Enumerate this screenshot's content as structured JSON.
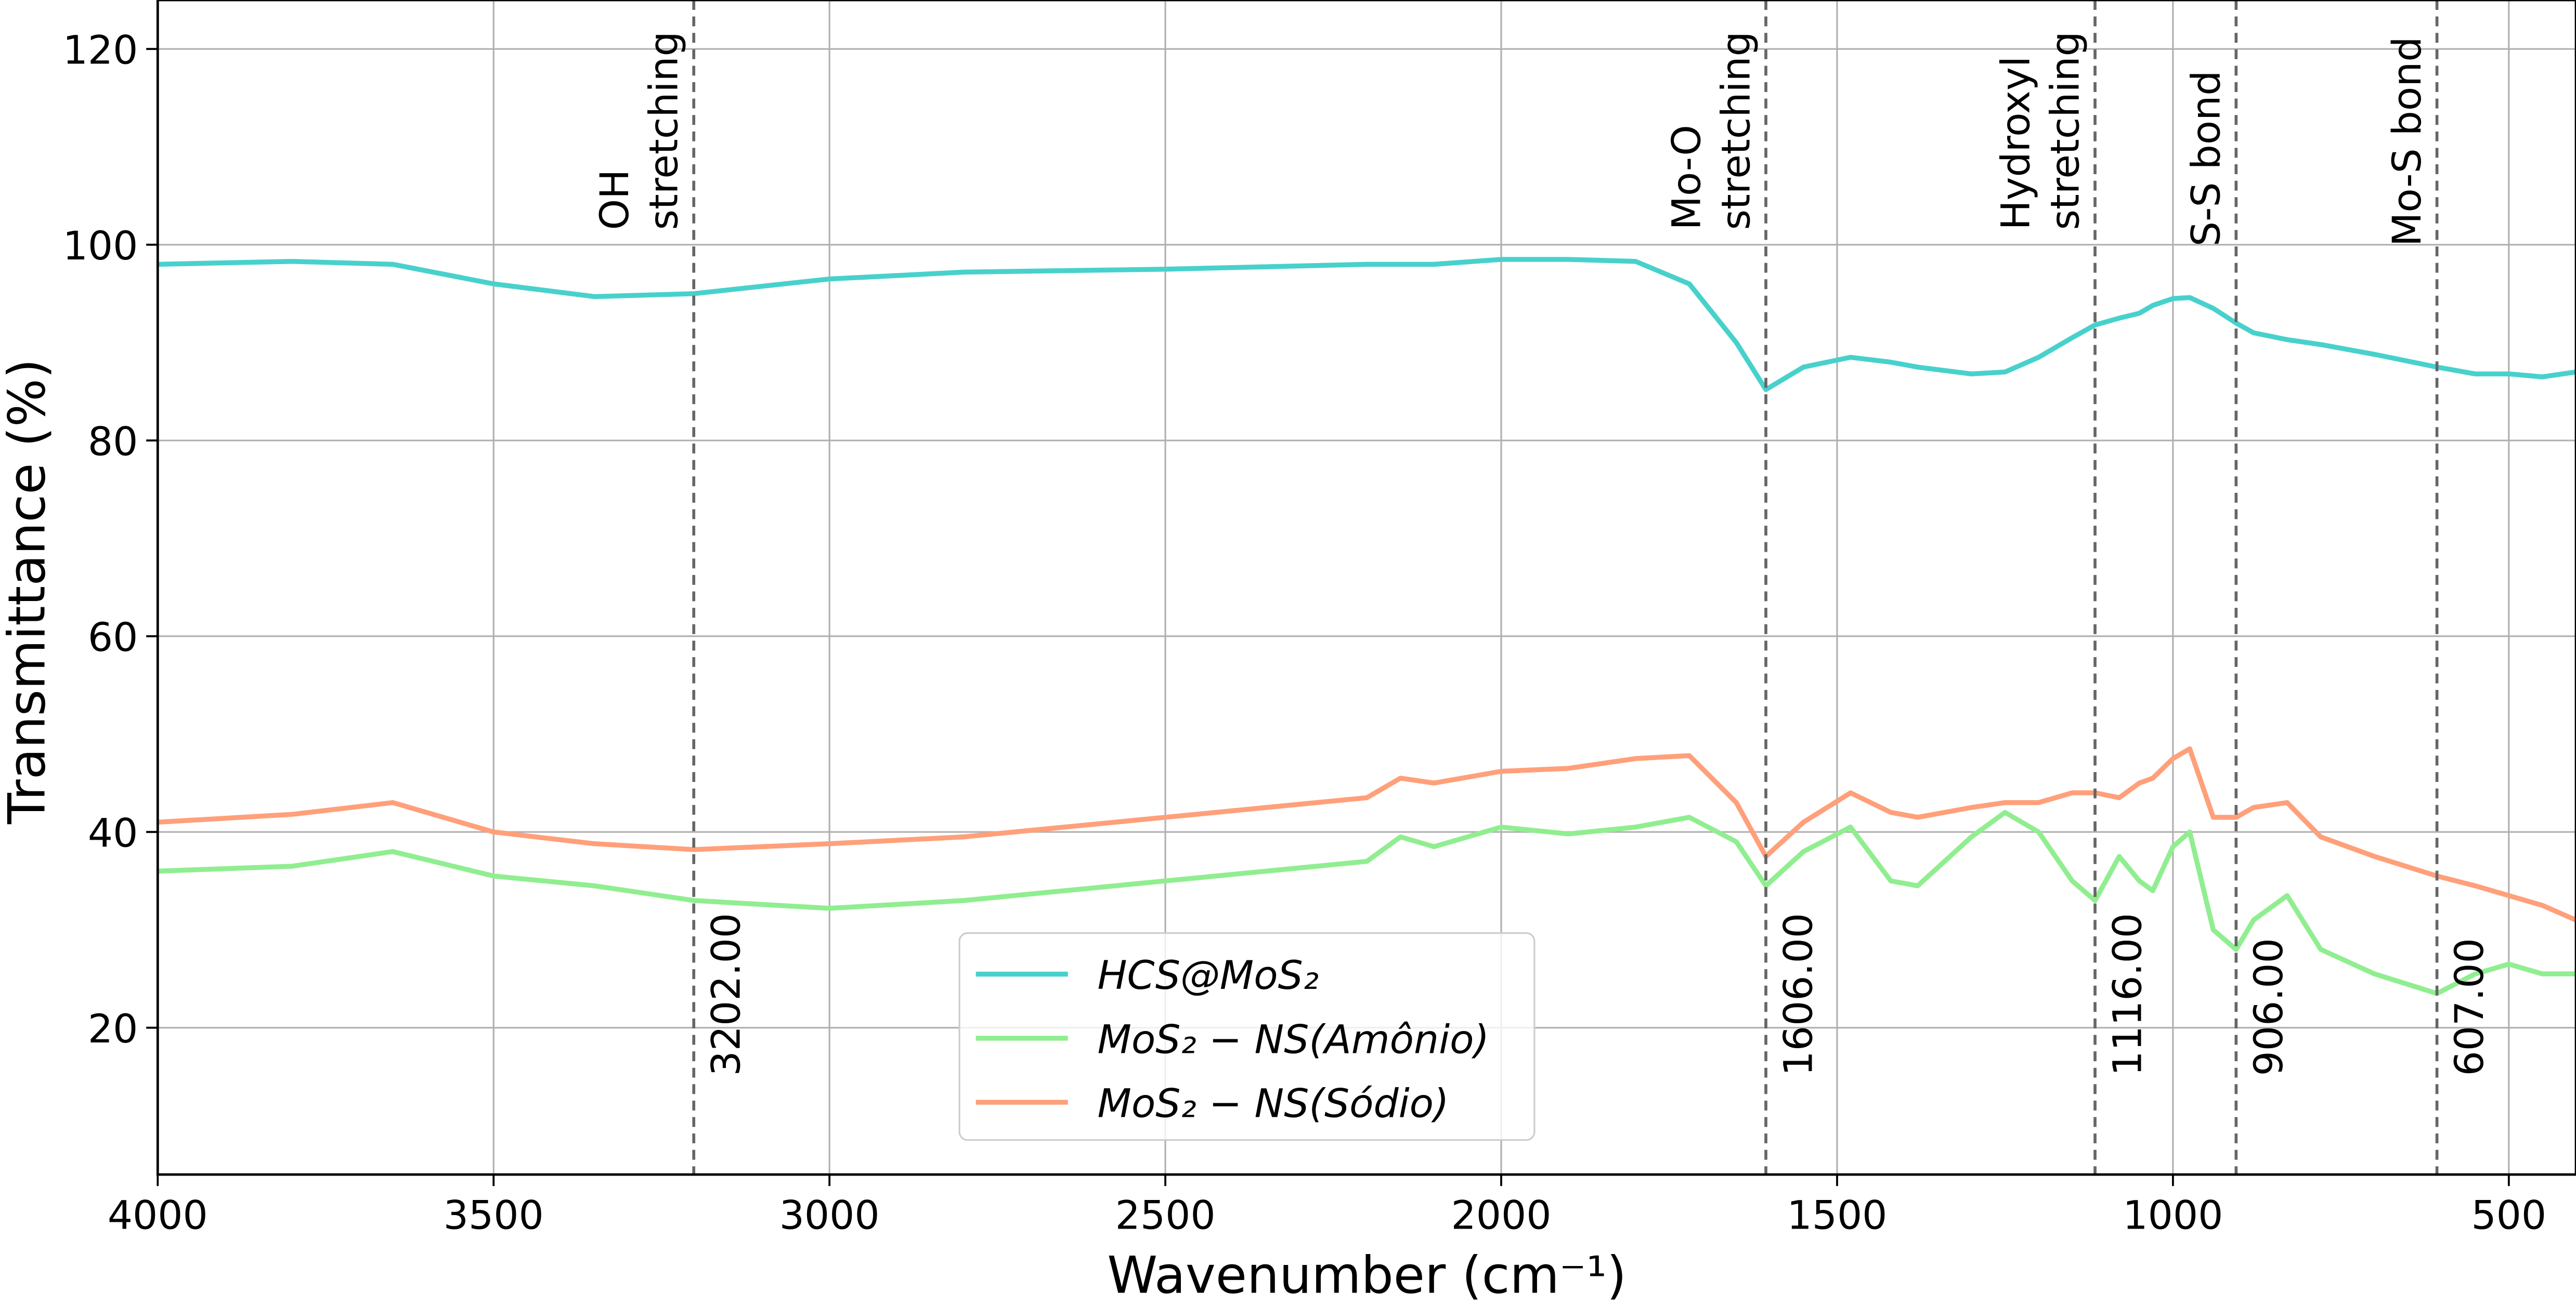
{
  "chart_data": {
    "type": "line",
    "xlabel": "Wavenumber (cm⁻¹)",
    "ylabel": "Transmittance (%)",
    "x": [
      4000,
      3800,
      3650,
      3500,
      3350,
      3202,
      3000,
      2800,
      2500,
      2200,
      2150,
      2100,
      2000,
      1900,
      1800,
      1720,
      1650,
      1606,
      1550,
      1480,
      1420,
      1380,
      1300,
      1250,
      1200,
      1150,
      1116,
      1080,
      1050,
      1030,
      1000,
      975,
      940,
      906,
      880,
      830,
      780,
      700,
      607,
      550,
      500,
      450,
      400
    ],
    "series": [
      {
        "name": "HCS@MoS₂",
        "color": "#48d1cc",
        "values": [
          98,
          98.3,
          98,
          96,
          94.7,
          95,
          96.5,
          97.2,
          97.5,
          98,
          98,
          98,
          98.5,
          98.5,
          98.3,
          96,
          90,
          85.2,
          87.5,
          88.5,
          88,
          87.5,
          86.8,
          87,
          88.5,
          90.5,
          91.8,
          92.5,
          93,
          93.8,
          94.5,
          94.6,
          93.5,
          92,
          91,
          90.3,
          89.8,
          88.8,
          87.5,
          86.8,
          86.8,
          86.5,
          87
        ]
      },
      {
        "name": "MoS₂ − NS(Amônio)",
        "color": "#90ee90",
        "values": [
          36,
          36.5,
          38,
          35.5,
          34.5,
          33,
          32.2,
          33,
          35,
          37,
          39.5,
          38.5,
          40.5,
          39.8,
          40.5,
          41.5,
          39,
          34.5,
          38,
          40.5,
          35,
          34.5,
          39.5,
          42,
          40,
          35,
          33,
          37.5,
          35,
          34,
          38.5,
          40,
          30,
          28,
          31,
          33.5,
          28,
          25.5,
          23.5,
          25.5,
          26.5,
          25.5,
          25.5
        ]
      },
      {
        "name": "MoS₂ − NS(Sódio)",
        "color": "#ffa07a",
        "values": [
          41,
          41.8,
          43,
          40,
          38.8,
          38.2,
          38.8,
          39.5,
          41.5,
          43.5,
          45.5,
          45,
          46.2,
          46.5,
          47.5,
          47.8,
          43,
          37.5,
          41,
          44,
          42,
          41.5,
          42.5,
          43,
          43,
          44,
          44,
          43.5,
          45,
          45.5,
          47.5,
          48.5,
          41.5,
          41.5,
          42.5,
          43,
          39.5,
          37.5,
          35.5,
          34.5,
          33.5,
          32.5,
          31
        ]
      }
    ],
    "xlim": [
      4000,
      400
    ],
    "ylim": [
      5,
      125
    ],
    "xticks": [
      4000,
      3500,
      3000,
      2500,
      2000,
      1500,
      1000,
      500
    ],
    "yticks": [
      20,
      40,
      60,
      80,
      100,
      120
    ],
    "grid": true,
    "legend": "lower center",
    "annotations": [
      {
        "x": 3202,
        "label": "3202.00",
        "text": [
          "OH",
          "stretching"
        ]
      },
      {
        "x": 1606,
        "label": "1606.00",
        "text": [
          "Mo-O",
          "stretching"
        ]
      },
      {
        "x": 1116,
        "label": "1116.00",
        "text": [
          "Hydroxyl",
          "stretching"
        ]
      },
      {
        "x": 906,
        "label": "906.00",
        "text": [
          "S-S bond"
        ]
      },
      {
        "x": 607,
        "label": "607.00",
        "text": [
          "Mo-S bond"
        ]
      }
    ]
  }
}
